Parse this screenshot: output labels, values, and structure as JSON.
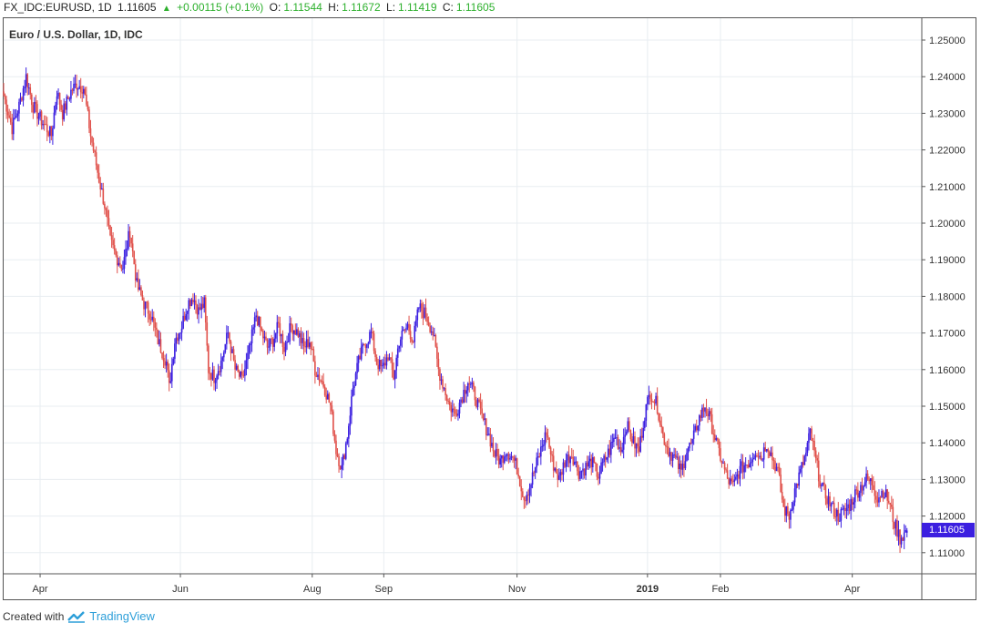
{
  "header": {
    "symbol": "FX_IDC:EURUSD, 1D",
    "last": "1.11605",
    "change": "+0.00115 (+0.1%)",
    "o_label": "O:",
    "o_value": "1.11544",
    "h_label": "H:",
    "h_value": "1.11672",
    "l_label": "L:",
    "l_value": "1.11419",
    "c_label": "C:",
    "c_value": "1.11605"
  },
  "footer": {
    "created_with": "Created with",
    "brand": "TradingView"
  },
  "price_tag": "1.11605",
  "colors": {
    "up": "#3b1fe0",
    "down": "#e0504a",
    "grid": "#e8edf1",
    "axis_text": "#333333",
    "header_green": "#2db02d"
  },
  "chart_data": {
    "type": "candlestick",
    "title": "Euro / U.S. Dollar, 1D, IDC",
    "ylim": [
      1.103,
      1.253
    ],
    "y_ticks": [
      "1.25000",
      "1.24000",
      "1.23000",
      "1.22000",
      "1.21000",
      "1.20000",
      "1.19000",
      "1.18000",
      "1.17000",
      "1.16000",
      "1.15000",
      "1.14000",
      "1.13000",
      "1.12000",
      "1.11000"
    ],
    "x_tick_labels": [
      {
        "label": "Apr",
        "bar": 26
      },
      {
        "label": "Jun",
        "bar": 126
      },
      {
        "label": "Aug",
        "bar": 220
      },
      {
        "label": "Sep",
        "bar": 271
      },
      {
        "label": "Nov",
        "bar": 366
      },
      {
        "label": "2019",
        "bar": 459
      },
      {
        "label": "Feb",
        "bar": 511
      },
      {
        "label": "Apr",
        "bar": 605
      }
    ],
    "total_bars": 645,
    "bar_width": 1.54,
    "anchors": [
      [
        0,
        1.235
      ],
      [
        6,
        1.226
      ],
      [
        11,
        1.232
      ],
      [
        16,
        1.24
      ],
      [
        21,
        1.232
      ],
      [
        27,
        1.228
      ],
      [
        34,
        1.224
      ],
      [
        38,
        1.236
      ],
      [
        42,
        1.23
      ],
      [
        48,
        1.236
      ],
      [
        52,
        1.238
      ],
      [
        57,
        1.237
      ],
      [
        62,
        1.224
      ],
      [
        68,
        1.212
      ],
      [
        72,
        1.205
      ],
      [
        76,
        1.195
      ],
      [
        80,
        1.191
      ],
      [
        85,
        1.188
      ],
      [
        90,
        1.198
      ],
      [
        95,
        1.183
      ],
      [
        100,
        1.178
      ],
      [
        105,
        1.175
      ],
      [
        110,
        1.168
      ],
      [
        116,
        1.162
      ],
      [
        118,
        1.155
      ],
      [
        122,
        1.168
      ],
      [
        127,
        1.172
      ],
      [
        131,
        1.178
      ],
      [
        135,
        1.18
      ],
      [
        139,
        1.176
      ],
      [
        143,
        1.178
      ],
      [
        146,
        1.16
      ],
      [
        150,
        1.158
      ],
      [
        155,
        1.162
      ],
      [
        160,
        1.17
      ],
      [
        165,
        1.16
      ],
      [
        170,
        1.157
      ],
      [
        175,
        1.165
      ],
      [
        180,
        1.175
      ],
      [
        184,
        1.17
      ],
      [
        188,
        1.166
      ],
      [
        192,
        1.168
      ],
      [
        196,
        1.172
      ],
      [
        200,
        1.166
      ],
      [
        205,
        1.172
      ],
      [
        210,
        1.17
      ],
      [
        214,
        1.166
      ],
      [
        218,
        1.168
      ],
      [
        222,
        1.16
      ],
      [
        228,
        1.156
      ],
      [
        233,
        1.15
      ],
      [
        237,
        1.138
      ],
      [
        241,
        1.133
      ],
      [
        245,
        1.142
      ],
      [
        249,
        1.155
      ],
      [
        253,
        1.162
      ],
      [
        257,
        1.167
      ],
      [
        262,
        1.17
      ],
      [
        266,
        1.162
      ],
      [
        270,
        1.16
      ],
      [
        274,
        1.164
      ],
      [
        278,
        1.158
      ],
      [
        282,
        1.168
      ],
      [
        288,
        1.172
      ],
      [
        292,
        1.168
      ],
      [
        296,
        1.177
      ],
      [
        301,
        1.175
      ],
      [
        306,
        1.17
      ],
      [
        310,
        1.16
      ],
      [
        314,
        1.155
      ],
      [
        318,
        1.15
      ],
      [
        322,
        1.148
      ],
      [
        326,
        1.152
      ],
      [
        331,
        1.157
      ],
      [
        336,
        1.153
      ],
      [
        340,
        1.148
      ],
      [
        346,
        1.142
      ],
      [
        350,
        1.137
      ],
      [
        354,
        1.135
      ],
      [
        358,
        1.138
      ],
      [
        363,
        1.136
      ],
      [
        366,
        1.133
      ],
      [
        371,
        1.125
      ],
      [
        375,
        1.128
      ],
      [
        378,
        1.132
      ],
      [
        383,
        1.138
      ],
      [
        387,
        1.143
      ],
      [
        391,
        1.135
      ],
      [
        396,
        1.13
      ],
      [
        400,
        1.135
      ],
      [
        405,
        1.137
      ],
      [
        410,
        1.132
      ],
      [
        414,
        1.133
      ],
      [
        419,
        1.135
      ],
      [
        424,
        1.131
      ],
      [
        428,
        1.135
      ],
      [
        432,
        1.138
      ],
      [
        436,
        1.142
      ],
      [
        440,
        1.138
      ],
      [
        444,
        1.145
      ],
      [
        449,
        1.14
      ],
      [
        453,
        1.138
      ],
      [
        457,
        1.148
      ],
      [
        461,
        1.154
      ],
      [
        466,
        1.15
      ],
      [
        470,
        1.142
      ],
      [
        474,
        1.138
      ],
      [
        478,
        1.136
      ],
      [
        483,
        1.132
      ],
      [
        487,
        1.138
      ],
      [
        491,
        1.14
      ],
      [
        495,
        1.146
      ],
      [
        500,
        1.15
      ],
      [
        504,
        1.146
      ],
      [
        508,
        1.14
      ],
      [
        512,
        1.135
      ],
      [
        516,
        1.13
      ],
      [
        520,
        1.128
      ],
      [
        524,
        1.132
      ],
      [
        528,
        1.134
      ],
      [
        532,
        1.135
      ],
      [
        536,
        1.138
      ],
      [
        540,
        1.136
      ],
      [
        544,
        1.14
      ],
      [
        548,
        1.136
      ],
      [
        552,
        1.132
      ],
      [
        556,
        1.122
      ],
      [
        560,
        1.12
      ],
      [
        564,
        1.127
      ],
      [
        568,
        1.132
      ],
      [
        572,
        1.137
      ],
      [
        575,
        1.143
      ],
      [
        579,
        1.135
      ],
      [
        583,
        1.128
      ],
      [
        587,
        1.125
      ],
      [
        591,
        1.122
      ],
      [
        595,
        1.12
      ],
      [
        599,
        1.121
      ],
      [
        603,
        1.123
      ],
      [
        607,
        1.126
      ],
      [
        611,
        1.128
      ],
      [
        615,
        1.13
      ],
      [
        619,
        1.129
      ],
      [
        623,
        1.125
      ],
      [
        627,
        1.127
      ],
      [
        631,
        1.124
      ],
      [
        635,
        1.118
      ],
      [
        639,
        1.114
      ],
      [
        644,
        1.116
      ]
    ]
  }
}
